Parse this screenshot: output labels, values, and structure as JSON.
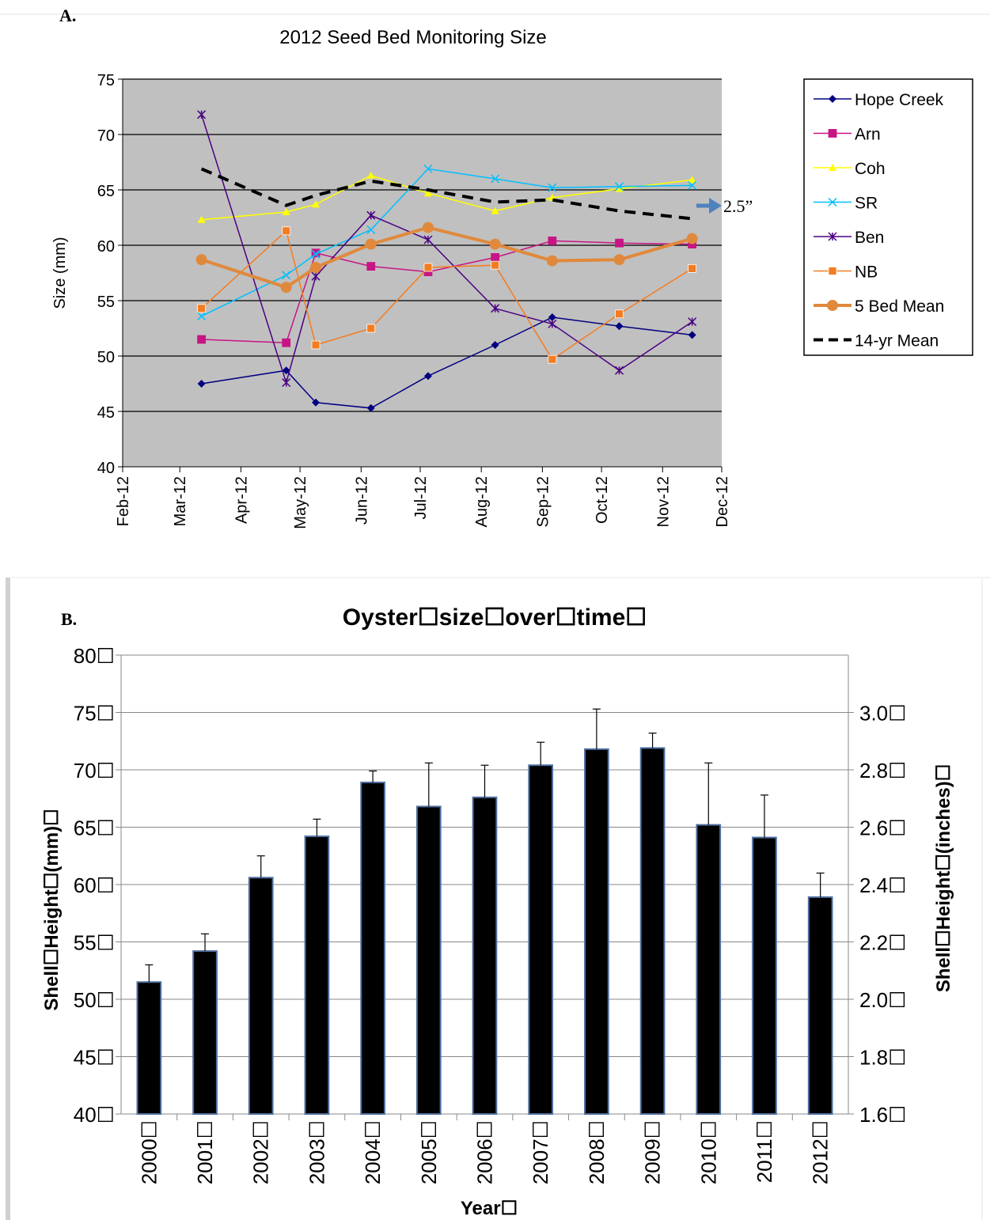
{
  "panel_a": {
    "label": "A.",
    "annotation": "2.5”",
    "arrow_color": "#4f81bd"
  },
  "panel_b": {
    "label": "B."
  },
  "chart_data": [
    {
      "type": "line",
      "title": "2012 Seed Bed Monitoring Size",
      "xlabel": "",
      "ylabel": "Size (mm)",
      "ylim": [
        40,
        75
      ],
      "yticks": [
        40,
        45,
        50,
        55,
        60,
        65,
        70,
        75
      ],
      "xticks": [
        "Feb-12",
        "Mar-12",
        "Apr-12",
        "May-12",
        "Jun-12",
        "Jul-12",
        "Aug-12",
        "Sep-12",
        "Oct-12",
        "Nov-12",
        "Dec-12"
      ],
      "grid": true,
      "legend": "right",
      "background": "#c0c0c0",
      "series": [
        {
          "name": "Hope Creek",
          "color": "#000080",
          "marker": "diamond",
          "width": 1.5,
          "points": [
            [
              "Mar-12",
              47.5
            ],
            [
              "Apr-24",
              48.7
            ],
            [
              "May-09",
              45.8
            ],
            [
              "Jun-06",
              45.3
            ],
            [
              "Jul-05",
              48.2
            ],
            [
              "Aug-08",
              51.0
            ],
            [
              "Sep-06",
              53.5
            ],
            [
              "Oct-10",
              52.7
            ],
            [
              "Nov-16",
              51.9
            ]
          ]
        },
        {
          "name": "Arn",
          "color": "#c71585",
          "marker": "square",
          "width": 1.5,
          "points": [
            [
              "Mar-12",
              51.5
            ],
            [
              "Apr-24",
              51.2
            ],
            [
              "May-09",
              59.3
            ],
            [
              "Jun-06",
              58.1
            ],
            [
              "Jul-05",
              57.6
            ],
            [
              "Aug-08",
              58.9
            ],
            [
              "Sep-06",
              60.4
            ],
            [
              "Oct-10",
              60.2
            ],
            [
              "Nov-16",
              60.1
            ]
          ]
        },
        {
          "name": "Coh",
          "color": "#ffff00",
          "marker": "triangle",
          "width": 1.5,
          "points": [
            [
              "Mar-12",
              62.3
            ],
            [
              "Apr-24",
              63.0
            ],
            [
              "May-09",
              63.7
            ],
            [
              "Jun-06",
              66.3
            ],
            [
              "Jul-05",
              64.7
            ],
            [
              "Aug-08",
              63.1
            ],
            [
              "Sep-06",
              64.3
            ],
            [
              "Oct-10",
              65.1
            ],
            [
              "Nov-16",
              65.9
            ]
          ]
        },
        {
          "name": "SR",
          "color": "#00bfff",
          "marker": "x",
          "width": 1.5,
          "points": [
            [
              "Mar-12",
              53.6
            ],
            [
              "Apr-24",
              57.3
            ],
            [
              "May-09",
              59.2
            ],
            [
              "Jun-06",
              61.4
            ],
            [
              "Jul-05",
              66.9
            ],
            [
              "Aug-08",
              66.0
            ],
            [
              "Sep-06",
              65.2
            ],
            [
              "Oct-10",
              65.3
            ],
            [
              "Nov-16",
              65.4
            ]
          ]
        },
        {
          "name": "Ben",
          "color": "#4b0082",
          "marker": "star",
          "width": 1.5,
          "points": [
            [
              "Mar-12",
              71.8
            ],
            [
              "Apr-24",
              47.6
            ],
            [
              "May-09",
              57.2
            ],
            [
              "Jun-06",
              62.7
            ],
            [
              "Jul-05",
              60.5
            ],
            [
              "Aug-08",
              54.3
            ],
            [
              "Sep-06",
              52.9
            ],
            [
              "Oct-10",
              48.7
            ],
            [
              "Nov-16",
              53.1
            ]
          ]
        },
        {
          "name": "NB",
          "color": "#f47c20",
          "marker": "square",
          "width": 1.5,
          "points": [
            [
              "Mar-12",
              54.3
            ],
            [
              "Apr-24",
              61.3
            ],
            [
              "May-09",
              51.0
            ],
            [
              "Jun-06",
              52.5
            ],
            [
              "Jul-05",
              58.0
            ],
            [
              "Aug-08",
              58.2
            ],
            [
              "Sep-06",
              49.7
            ],
            [
              "Oct-10",
              53.8
            ],
            [
              "Nov-16",
              57.9
            ]
          ]
        },
        {
          "name": "5 Bed Mean",
          "color": "#e0893c",
          "marker": "circle",
          "width": 4,
          "points": [
            [
              "Mar-12",
              58.7
            ],
            [
              "Apr-24",
              56.2
            ],
            [
              "May-09",
              58.0
            ],
            [
              "Jun-06",
              60.1
            ],
            [
              "Jul-05",
              61.6
            ],
            [
              "Aug-08",
              60.1
            ],
            [
              "Sep-06",
              58.6
            ],
            [
              "Oct-10",
              58.7
            ],
            [
              "Nov-16",
              60.6
            ]
          ]
        },
        {
          "name": "14-yr Mean",
          "color": "#000000",
          "marker": "none",
          "dash": true,
          "width": 4,
          "points": [
            [
              "Mar-12",
              66.9
            ],
            [
              "Apr-24",
              63.6
            ],
            [
              "May-09",
              64.5
            ],
            [
              "Jun-06",
              65.8
            ],
            [
              "Jul-05",
              65.0
            ],
            [
              "Aug-08",
              63.9
            ],
            [
              "Sep-06",
              64.1
            ],
            [
              "Oct-10",
              63.1
            ],
            [
              "Nov-16",
              62.4
            ]
          ]
        }
      ]
    },
    {
      "type": "bar",
      "title": "Oyster☐size☐over☐time☐",
      "xlabel": "Year☐",
      "ylabel": "Shell☐Height☐(mm)☐",
      "y2label": "Shell☐Height☐(inches)☐",
      "ylim": [
        40,
        80
      ],
      "yticks": [
        "40☐",
        "45☐",
        "50☐",
        "55☐",
        "60☐",
        "65☐",
        "70☐",
        "75☐",
        "80☐"
      ],
      "y2ticks": [
        "1.6☐",
        "1.8☐",
        "2.0☐",
        "2.2☐",
        "2.4☐",
        "2.6☐",
        "2.8☐",
        "3.0☐"
      ],
      "y2tick_values_mm": [
        40,
        45,
        50,
        55,
        60,
        65,
        70,
        75
      ],
      "categories": [
        "2000☐",
        "2001☐",
        "2002☐",
        "2003☐",
        "2004☐",
        "2005☐",
        "2006☐",
        "2007☐",
        "2008☐",
        "2009☐",
        "2010☐",
        "2011☐",
        "2012☐"
      ],
      "values": [
        51.5,
        54.2,
        60.6,
        64.2,
        68.9,
        66.8,
        67.6,
        70.4,
        71.8,
        71.9,
        65.2,
        64.1,
        58.9
      ],
      "error_upper": [
        53.0,
        55.7,
        62.5,
        65.7,
        69.9,
        70.6,
        70.4,
        72.4,
        75.3,
        73.2,
        70.6,
        67.8,
        61.0
      ],
      "bar_color": "#000000",
      "bar_edge": "#4f6fa0",
      "grid": true
    }
  ]
}
